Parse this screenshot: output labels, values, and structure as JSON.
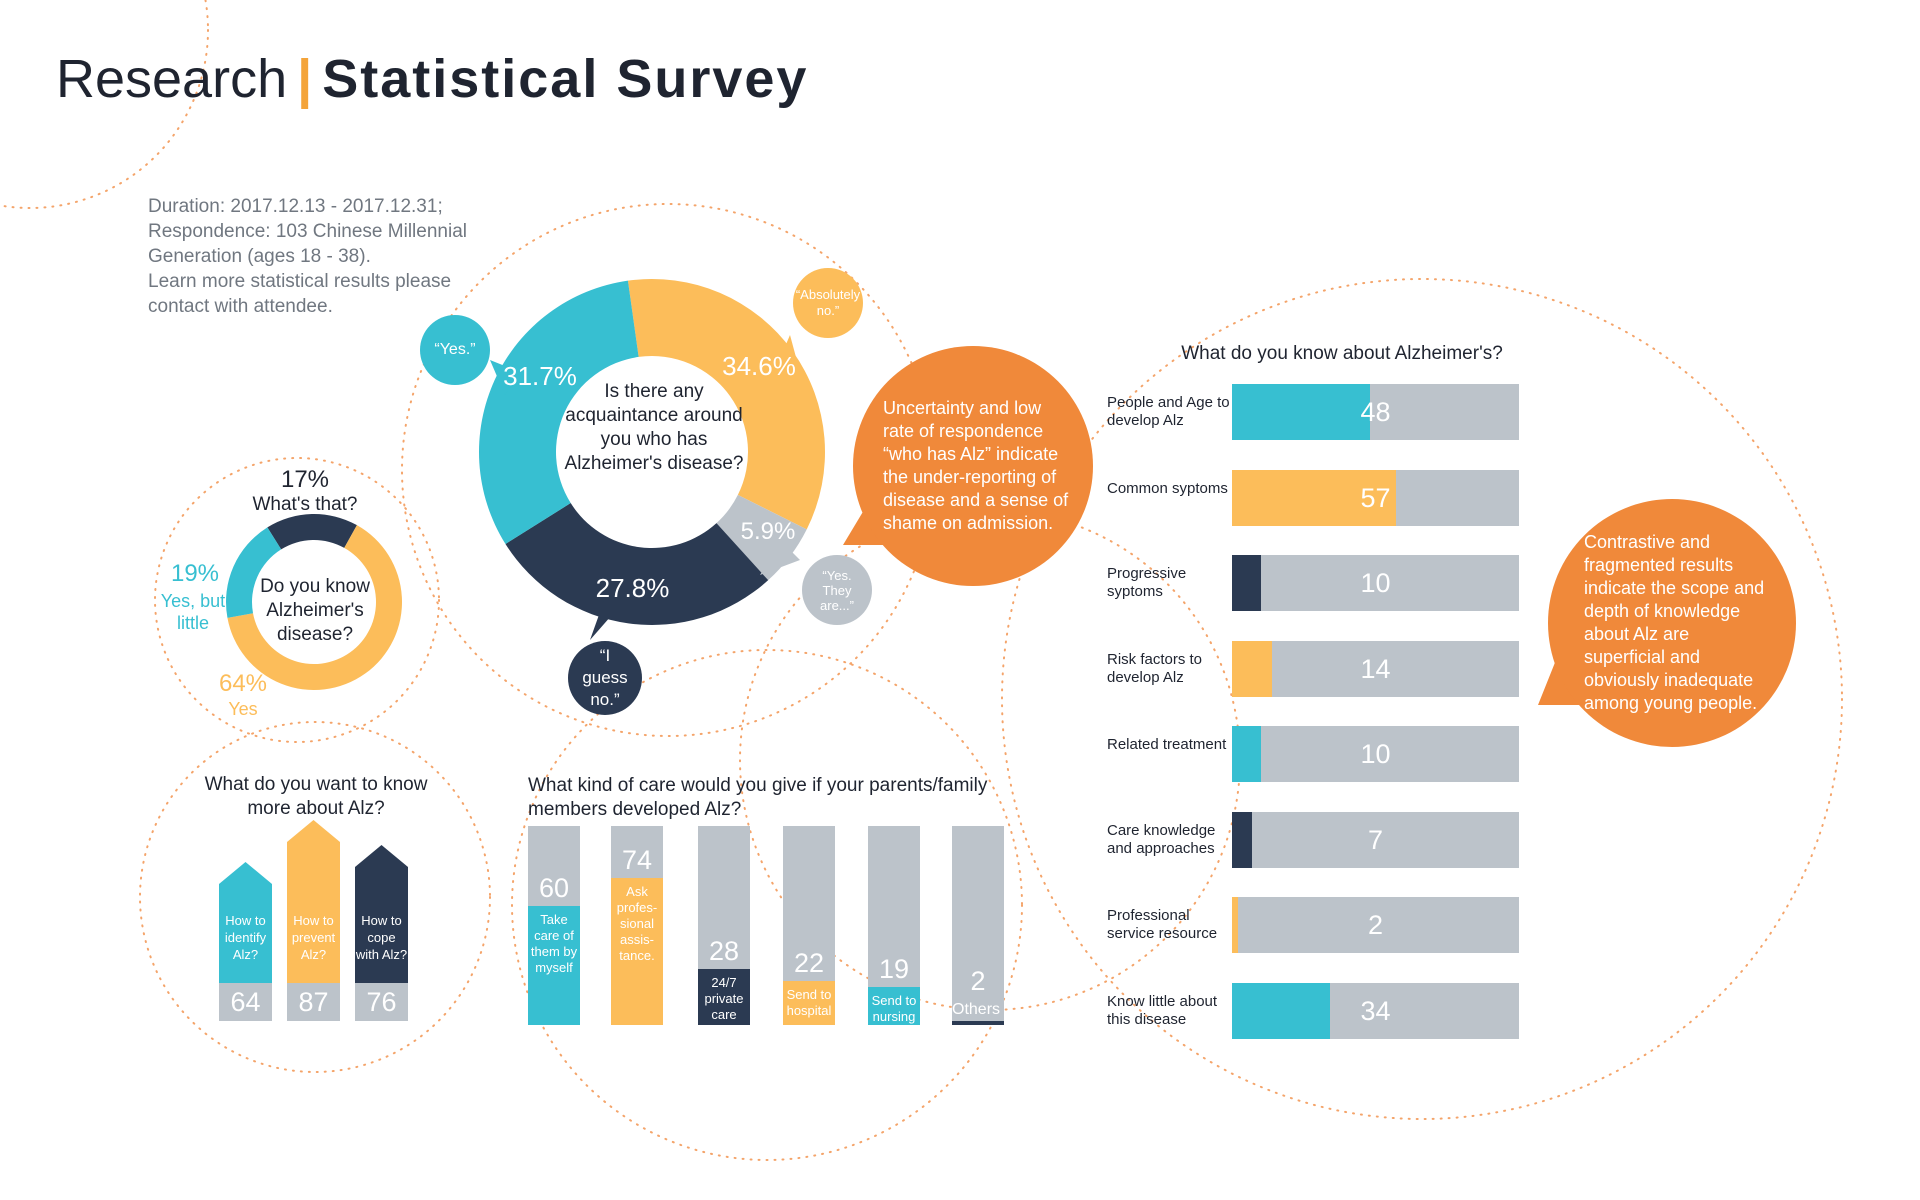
{
  "header": {
    "title_light": "Research",
    "separator": "|",
    "title_bold": "Statistical Survey"
  },
  "info": [
    "Duration: 2017.12.13 - 2017.12.31;",
    "Respondence: 103 Chinese Millennial",
    "Generation (ages 18 - 38).",
    "Learn more statistical results please",
    "contact with attendee."
  ],
  "colors": {
    "cyan": "#37bfd1",
    "yellow": "#fcbd5a",
    "navy": "#2b3a52",
    "gray": "#bcc3ca",
    "orange": "#f0893a",
    "dots": "#f4a46a"
  },
  "notes": {
    "left": "Uncertainty and low rate of respondence “who has Alz” indicate the under-reporting of disease and a sense of shame on admission.",
    "right": "Contrastive and fragmented results indicate the scope and depth of knowledge about Alz are superficial and obviously inadequate among young people."
  },
  "chart_data": [
    {
      "type": "pie",
      "title": "Do you know Alzheimer's disease?",
      "donut": true,
      "slices": [
        {
          "label": "What's that?",
          "value": 17,
          "display": "17%",
          "color": "#2b3a52"
        },
        {
          "label": "Yes",
          "value": 64,
          "display": "64%",
          "color": "#fcbd5a"
        },
        {
          "label": "Yes, but little",
          "value": 19,
          "display": "19%",
          "color": "#37bfd1"
        }
      ]
    },
    {
      "type": "pie",
      "title": "Is there any acquaintance around you who has Alzheimer's disease?",
      "donut": true,
      "slices": [
        {
          "label": "“Absolutely no.”",
          "value": 34.6,
          "display": "34.6%",
          "color": "#fcbd5a"
        },
        {
          "label": "“Yes. They are...”",
          "value": 5.9,
          "display": "5.9%",
          "color": "#bcc3ca"
        },
        {
          "label": "“I guess no.”",
          "value": 27.8,
          "display": "27.8%",
          "color": "#2b3a52"
        },
        {
          "label": "“Yes.”",
          "value": 31.7,
          "display": "31.7%",
          "color": "#37bfd1"
        }
      ]
    },
    {
      "type": "bar",
      "title": "What do you want to know more about Alz?",
      "categories": [
        "How to identify Alz?",
        "How to prevent Alz?",
        "How to cope with Alz?"
      ],
      "values": [
        64,
        87,
        76
      ],
      "colors": [
        "#37bfd1",
        "#fcbd5a",
        "#2b3a52"
      ]
    },
    {
      "type": "bar",
      "title": "What kind of care would you give if your parents/family members developed Alz?",
      "categories": [
        "Take care of them by myself",
        "Ask profes- sional assis- tance.",
        "24/7 private care",
        "Send to hospital",
        "Send to nursing home",
        "Others"
      ],
      "values": [
        60,
        74,
        28,
        22,
        19,
        2
      ],
      "ylim": [
        0,
        100
      ],
      "colors": [
        "#37bfd1",
        "#fcbd5a",
        "#2b3a52",
        "#fcbd5a",
        "#37bfd1",
        "#2b3a52"
      ]
    },
    {
      "type": "bar",
      "orientation": "horizontal",
      "title": "What do you know about Alzheimer's?",
      "categories": [
        "People and Age to develop Alz",
        "Common syptoms",
        "Progressive syptoms",
        "Risk factors to develop Alz",
        "Related treatment",
        "Care knowledge and approaches",
        "Professional service resource",
        "Know little about this disease"
      ],
      "values": [
        48,
        57,
        10,
        14,
        10,
        7,
        2,
        34
      ],
      "xlim": [
        0,
        100
      ],
      "colors": [
        "#37bfd1",
        "#fcbd5a",
        "#2b3a52",
        "#fcbd5a",
        "#37bfd1",
        "#2b3a52",
        "#fcbd5a",
        "#37bfd1"
      ]
    }
  ]
}
